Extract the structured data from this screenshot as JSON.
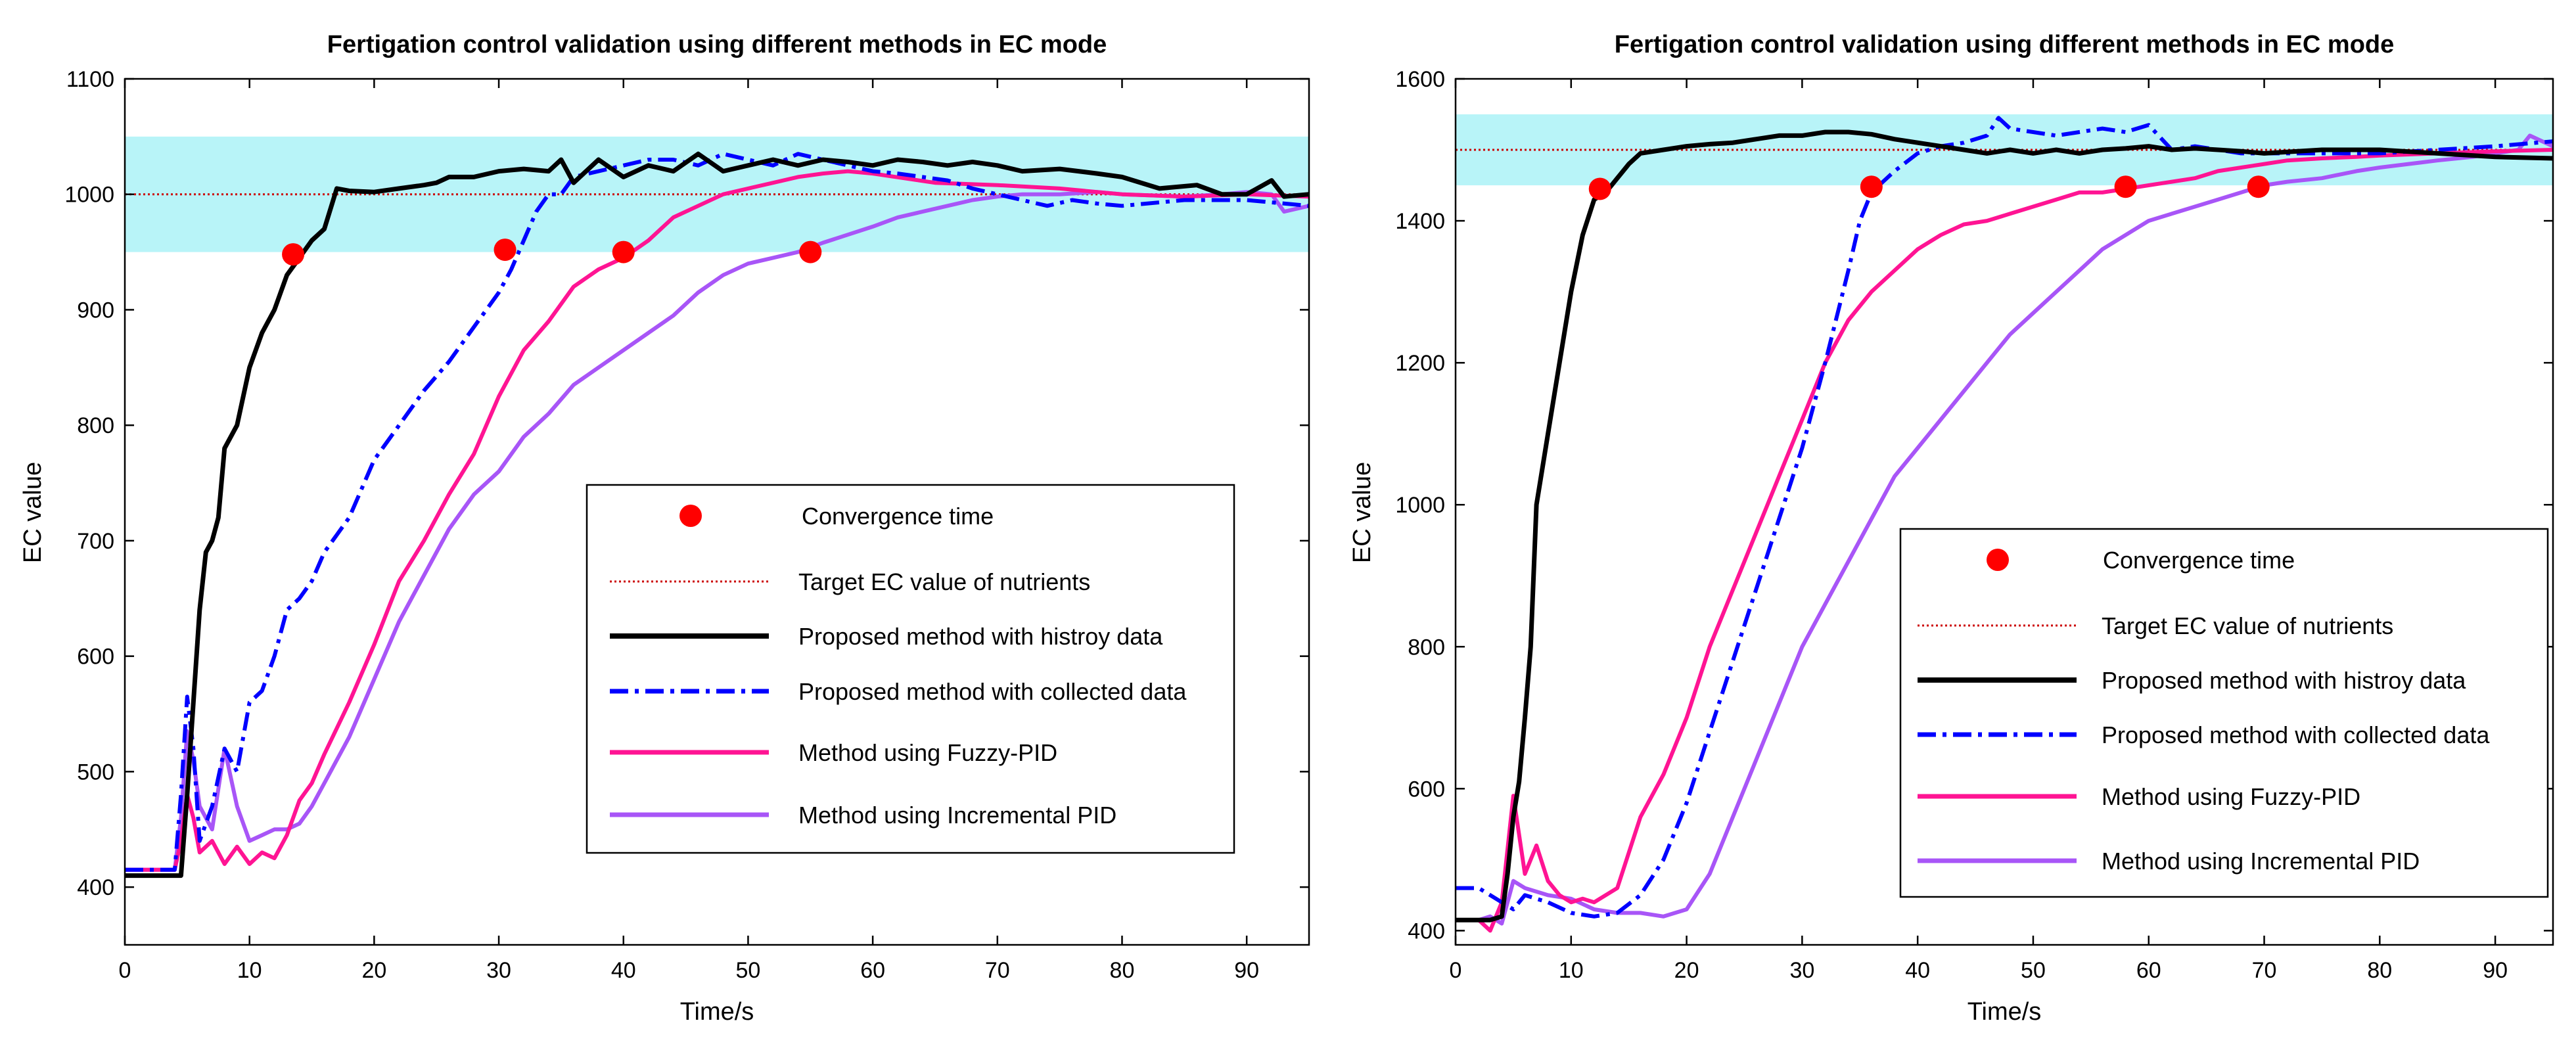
{
  "chart_data": [
    {
      "type": "line",
      "title": "Fertigation control validation using different methods in EC mode",
      "xlabel": "Time/s",
      "ylabel": "EC value",
      "xlim": [
        0,
        95
      ],
      "ylim": [
        350,
        1100
      ],
      "xticks": [
        0,
        10,
        20,
        30,
        40,
        50,
        60,
        70,
        80,
        90
      ],
      "yticks": [
        400,
        500,
        600,
        700,
        800,
        900,
        1000,
        1100
      ],
      "target": 1000,
      "band": [
        950,
        1050
      ],
      "legend": {
        "position": "center-right",
        "convergence_label": "Convergence time",
        "target_label": "Target EC value of nutrients"
      },
      "series": [
        {
          "name": "Proposed method with histroy data",
          "color": "#000000",
          "style": "solid",
          "x": [
            0,
            1,
            2,
            3,
            4,
            4.5,
            5,
            5.5,
            6,
            6.5,
            7,
            7.5,
            8,
            9,
            10,
            11,
            12,
            13,
            14,
            15,
            16,
            17,
            18,
            20,
            22,
            24,
            25,
            26,
            28,
            30,
            32,
            34,
            35,
            36,
            38,
            40,
            42,
            44,
            46,
            48,
            50,
            52,
            54,
            56,
            58,
            60,
            62,
            64,
            66,
            68,
            70,
            72,
            75,
            78,
            80,
            83,
            86,
            88,
            90,
            92,
            93,
            95
          ],
          "y": [
            410,
            410,
            410,
            410,
            410,
            410,
            480,
            560,
            640,
            690,
            700,
            720,
            780,
            800,
            850,
            880,
            900,
            930,
            945,
            960,
            970,
            1005,
            1003,
            1002,
            1005,
            1008,
            1010,
            1015,
            1015,
            1020,
            1022,
            1020,
            1030,
            1010,
            1030,
            1015,
            1025,
            1020,
            1035,
            1020,
            1025,
            1030,
            1025,
            1030,
            1028,
            1025,
            1030,
            1028,
            1025,
            1028,
            1025,
            1020,
            1022,
            1018,
            1015,
            1005,
            1008,
            1000,
            1000,
            1012,
            998,
            1000
          ]
        },
        {
          "name": "Proposed method with collected data",
          "color": "#0000FF",
          "style": "dashdot",
          "x": [
            0,
            2,
            4,
            4.5,
            5,
            5.5,
            6,
            7,
            8,
            9,
            10,
            11,
            12,
            13,
            14,
            15,
            16,
            18,
            20,
            22,
            24,
            26,
            28,
            30,
            31,
            32,
            33,
            34,
            35,
            36,
            38,
            40,
            42,
            44,
            46,
            48,
            50,
            52,
            54,
            56,
            58,
            60,
            62,
            64,
            66,
            68,
            70,
            72,
            74,
            76,
            78,
            80,
            85,
            90,
            95
          ],
          "y": [
            415,
            415,
            415,
            480,
            565,
            520,
            440,
            470,
            520,
            500,
            560,
            570,
            600,
            640,
            650,
            665,
            690,
            720,
            770,
            800,
            830,
            855,
            885,
            915,
            935,
            960,
            985,
            1000,
            1000,
            1015,
            1020,
            1025,
            1030,
            1030,
            1025,
            1035,
            1030,
            1025,
            1035,
            1030,
            1025,
            1020,
            1018,
            1015,
            1012,
            1005,
            1000,
            995,
            990,
            995,
            992,
            990,
            995,
            995,
            990
          ]
        },
        {
          "name": "Method using Fuzzy-PID",
          "color": "#FF1493",
          "style": "solid",
          "x": [
            0,
            2,
            4,
            4.5,
            5,
            5.5,
            6,
            7,
            8,
            9,
            10,
            11,
            12,
            13,
            14,
            15,
            16,
            18,
            20,
            22,
            24,
            26,
            28,
            30,
            32,
            34,
            36,
            38,
            40,
            42,
            44,
            46,
            48,
            50,
            52,
            54,
            56,
            58,
            60,
            65,
            70,
            75,
            80,
            85,
            90,
            95
          ],
          "y": [
            415,
            415,
            415,
            440,
            480,
            460,
            430,
            440,
            420,
            435,
            420,
            430,
            425,
            445,
            475,
            490,
            515,
            560,
            610,
            665,
            700,
            740,
            775,
            825,
            865,
            890,
            920,
            935,
            945,
            960,
            980,
            990,
            1000,
            1005,
            1010,
            1015,
            1018,
            1020,
            1018,
            1010,
            1008,
            1005,
            1000,
            998,
            1000,
            998
          ]
        },
        {
          "name": "Method using Incremental PID",
          "color": "#A855F7",
          "style": "solid",
          "x": [
            0,
            2,
            4,
            4.5,
            5,
            5.5,
            6,
            7,
            8,
            9,
            10,
            11,
            12,
            13,
            14,
            15,
            16,
            18,
            20,
            22,
            24,
            26,
            28,
            30,
            32,
            34,
            36,
            38,
            40,
            42,
            44,
            46,
            48,
            50,
            52,
            54,
            56,
            58,
            60,
            62,
            64,
            66,
            68,
            70,
            72,
            75,
            78,
            80,
            85,
            88,
            90,
            92,
            93,
            95
          ],
          "y": [
            415,
            415,
            415,
            460,
            535,
            510,
            470,
            450,
            520,
            470,
            440,
            445,
            450,
            450,
            455,
            470,
            490,
            530,
            580,
            630,
            670,
            710,
            740,
            760,
            790,
            810,
            835,
            850,
            865,
            880,
            895,
            915,
            930,
            940,
            945,
            950,
            958,
            965,
            972,
            980,
            985,
            990,
            995,
            998,
            1000,
            1000,
            1002,
            1000,
            998,
            1000,
            1002,
            1000,
            985,
            990
          ]
        }
      ],
      "convergence": [
        {
          "x": 13.5,
          "y": 948
        },
        {
          "x": 30.5,
          "y": 952
        },
        {
          "x": 40,
          "y": 950
        },
        {
          "x": 55,
          "y": 950
        }
      ]
    },
    {
      "type": "line",
      "title": "Fertigation control validation using different methods in EC mode",
      "xlabel": "Time/s",
      "ylabel": "EC value",
      "xlim": [
        0,
        95
      ],
      "ylim": [
        380,
        1600
      ],
      "xticks": [
        0,
        10,
        20,
        30,
        40,
        50,
        60,
        70,
        80,
        90
      ],
      "yticks": [
        400,
        600,
        800,
        1000,
        1200,
        1400,
        1600
      ],
      "target": 1500,
      "band": [
        1450,
        1550
      ],
      "legend": {
        "position": "lower-right",
        "convergence_label": "Convergence time",
        "target_label": "Target EC value of nutrients"
      },
      "series": [
        {
          "name": "Proposed method with histroy data",
          "color": "#000000",
          "style": "solid",
          "x": [
            0,
            2,
            3,
            4,
            4.5,
            5,
            5.5,
            6,
            6.5,
            7,
            8,
            9,
            10,
            11,
            12,
            13,
            14,
            15,
            16,
            18,
            20,
            22,
            24,
            26,
            28,
            30,
            32,
            34,
            36,
            38,
            40,
            42,
            44,
            46,
            48,
            50,
            52,
            54,
            56,
            58,
            60,
            62,
            64,
            66,
            68,
            70,
            75,
            80,
            85,
            90,
            95
          ],
          "y": [
            415,
            415,
            415,
            420,
            480,
            560,
            610,
            700,
            800,
            1000,
            1100,
            1200,
            1300,
            1380,
            1430,
            1440,
            1460,
            1480,
            1495,
            1500,
            1505,
            1508,
            1510,
            1515,
            1520,
            1520,
            1525,
            1525,
            1522,
            1515,
            1510,
            1505,
            1500,
            1495,
            1500,
            1495,
            1500,
            1495,
            1500,
            1502,
            1505,
            1500,
            1502,
            1500,
            1498,
            1495,
            1500,
            1500,
            1495,
            1490,
            1488
          ]
        },
        {
          "name": "Proposed method with collected data",
          "color": "#0000FF",
          "style": "dashdot",
          "x": [
            0,
            2,
            4,
            5,
            6,
            8,
            10,
            12,
            14,
            16,
            18,
            20,
            22,
            24,
            26,
            28,
            30,
            32,
            34,
            35,
            36,
            38,
            40,
            42,
            44,
            46,
            47,
            48,
            50,
            52,
            54,
            56,
            58,
            60,
            62,
            64,
            66,
            68,
            70,
            75,
            80,
            85,
            90,
            95
          ],
          "y": [
            460,
            460,
            440,
            430,
            450,
            440,
            425,
            420,
            425,
            450,
            500,
            580,
            680,
            780,
            880,
            980,
            1080,
            1200,
            1330,
            1400,
            1440,
            1470,
            1495,
            1505,
            1510,
            1520,
            1545,
            1530,
            1525,
            1520,
            1525,
            1530,
            1525,
            1535,
            1500,
            1505,
            1500,
            1495,
            1495,
            1495,
            1495,
            1500,
            1505,
            1512
          ]
        },
        {
          "name": "Method using Fuzzy-PID",
          "color": "#FF1493",
          "style": "solid",
          "x": [
            0,
            2,
            3,
            4,
            5,
            6,
            7,
            8,
            9,
            10,
            11,
            12,
            14,
            16,
            18,
            20,
            22,
            24,
            26,
            28,
            30,
            32,
            34,
            36,
            38,
            40,
            42,
            44,
            46,
            48,
            50,
            52,
            54,
            56,
            58,
            60,
            62,
            64,
            66,
            68,
            70,
            72,
            75,
            78,
            80,
            85,
            90,
            95
          ],
          "y": [
            415,
            415,
            400,
            440,
            590,
            480,
            520,
            470,
            450,
            440,
            445,
            440,
            460,
            560,
            620,
            700,
            800,
            880,
            960,
            1040,
            1120,
            1200,
            1260,
            1300,
            1330,
            1360,
            1380,
            1395,
            1400,
            1410,
            1420,
            1430,
            1440,
            1440,
            1445,
            1450,
            1455,
            1460,
            1470,
            1475,
            1480,
            1485,
            1488,
            1490,
            1492,
            1495,
            1498,
            1500
          ]
        },
        {
          "name": "Method using Incremental PID",
          "color": "#A855F7",
          "style": "solid",
          "x": [
            0,
            2,
            3,
            4,
            5,
            6,
            7,
            8,
            10,
            12,
            14,
            16,
            18,
            20,
            22,
            24,
            26,
            28,
            30,
            32,
            34,
            36,
            38,
            40,
            42,
            44,
            46,
            48,
            50,
            52,
            54,
            56,
            58,
            60,
            62,
            64,
            66,
            68,
            70,
            72,
            75,
            78,
            80,
            85,
            88,
            90,
            92,
            93,
            95
          ],
          "y": [
            415,
            415,
            420,
            410,
            470,
            460,
            455,
            450,
            445,
            430,
            425,
            425,
            420,
            430,
            480,
            560,
            640,
            720,
            800,
            860,
            920,
            980,
            1040,
            1080,
            1120,
            1160,
            1200,
            1240,
            1270,
            1300,
            1330,
            1360,
            1380,
            1400,
            1410,
            1420,
            1430,
            1440,
            1450,
            1455,
            1460,
            1470,
            1475,
            1485,
            1490,
            1495,
            1500,
            1520,
            1505
          ]
        }
      ],
      "convergence": [
        {
          "x": 12.5,
          "y": 1445
        },
        {
          "x": 36,
          "y": 1448
        },
        {
          "x": 58,
          "y": 1448
        },
        {
          "x": 69.5,
          "y": 1448
        }
      ]
    }
  ]
}
